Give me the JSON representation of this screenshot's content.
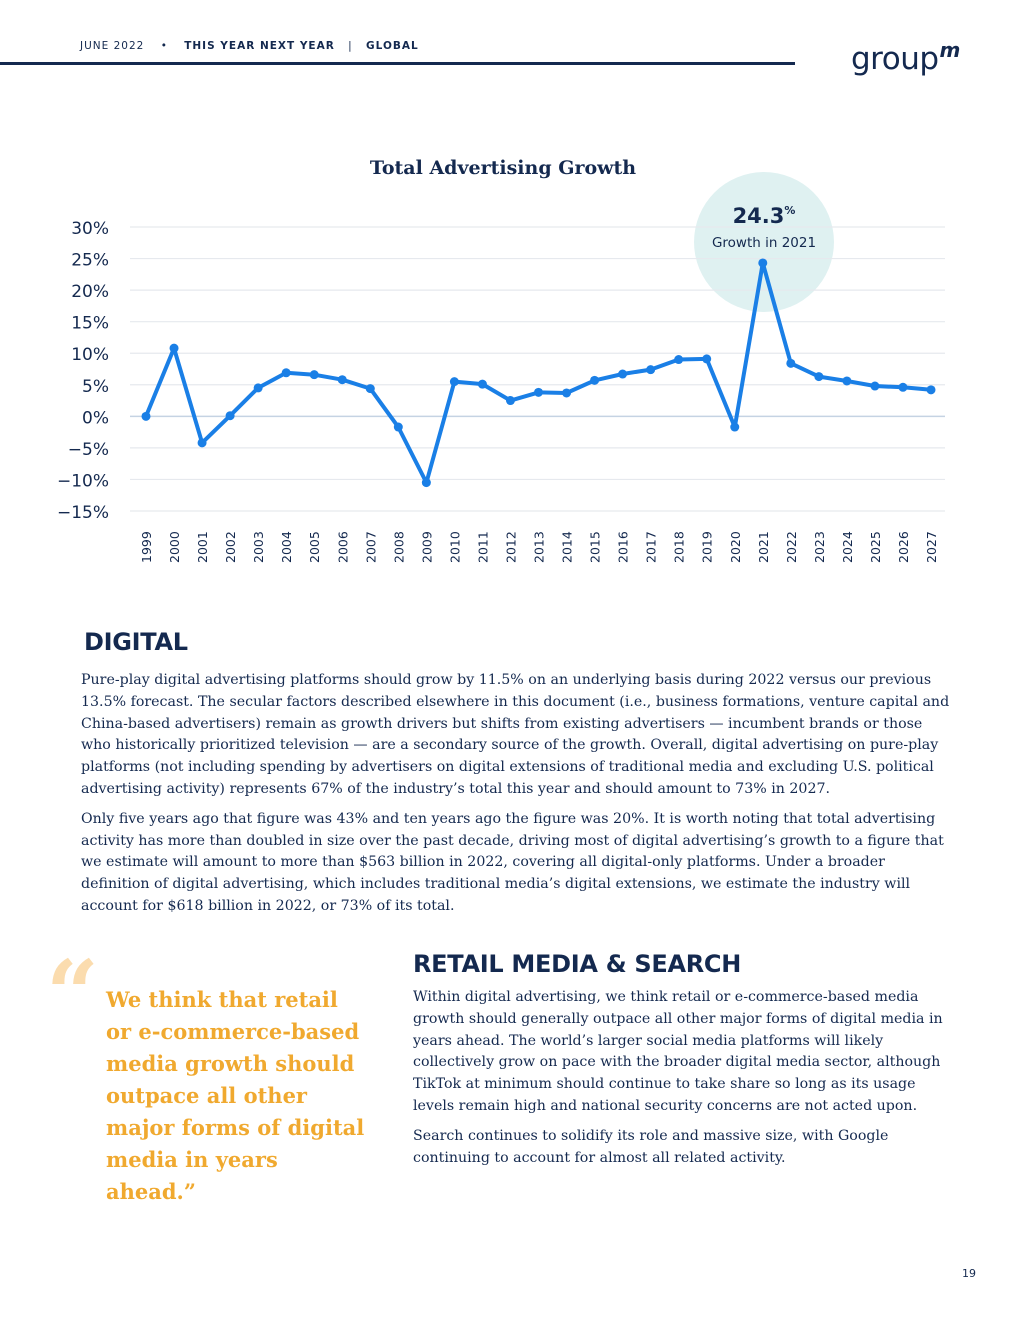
{
  "header": {
    "date": "JUNE 2022",
    "bullet": "•",
    "report": "THIS YEAR NEXT YEAR",
    "divider": "|",
    "region": "GLOBAL"
  },
  "logo": {
    "text": "group",
    "suffix": "m"
  },
  "chart_callout": {
    "value": "24.3",
    "unit": "%",
    "label": "Growth in 2021"
  },
  "chart_data": {
    "type": "line",
    "title": "Total Advertising Growth",
    "xlabel": "",
    "ylabel": "",
    "x": [
      "1999",
      "2000",
      "2001",
      "2002",
      "2003",
      "2004",
      "2005",
      "2006",
      "2007",
      "2008",
      "2009",
      "2010",
      "2011",
      "2012",
      "2013",
      "2014",
      "2015",
      "2016",
      "2017",
      "2018",
      "2019",
      "2020",
      "2021",
      "2022",
      "2023",
      "2024",
      "2025",
      "2026",
      "2027"
    ],
    "series": [
      {
        "values": [
          0.0,
          10.8,
          -4.2,
          0.1,
          4.5,
          6.9,
          6.6,
          5.8,
          4.4,
          -1.7,
          -10.5,
          5.5,
          5.1,
          2.5,
          3.8,
          3.7,
          5.7,
          6.7,
          7.4,
          9.0,
          9.1,
          -1.7,
          24.3,
          8.4,
          6.3,
          5.6,
          4.8,
          4.6,
          4.2
        ]
      }
    ],
    "ylim": [
      -15,
      30
    ],
    "yticks": [
      "30%",
      "25%",
      "20%",
      "15%",
      "10%",
      "5%",
      "0%",
      "−5%",
      "−10%",
      "−15%"
    ],
    "grid": true,
    "color": "#1a7fe6"
  },
  "digital": {
    "heading": "DIGITAL",
    "p1": "Pure-play digital advertising platforms should grow by 11.5% on an underlying basis during 2022 versus our previous 13.5% forecast. The secular factors described elsewhere in this document (i.e., business formations, venture capital and China-based advertisers) remain as growth drivers but shifts from existing advertisers — incumbent brands or those who historically prioritized television — are a secondary source of the growth. Overall, digital advertising on pure-play platforms (not including spending by advertisers on digital extensions of traditional media and excluding U.S. political advertising activity) represents 67% of the industry’s total this year and should amount to 73% in 2027.",
    "p2": "Only five years ago that figure was 43% and ten years ago the figure was 20%. It is worth noting that total advertising activity has more than doubled in size over the past decade, driving most of digital advertising’s growth to a figure that we estimate will amount to more than $563 billion in 2022, covering all digital-only platforms. Under a broader definition of digital advertising, which includes traditional media’s digital extensions, we estimate the industry will account for $618 billion in 2022, or 73% of its total."
  },
  "quote": {
    "mark": "“",
    "text": "We think that retail or e-commerce-based media growth should outpace all other major forms of digital media in years ahead.”"
  },
  "retail": {
    "heading": "RETAIL MEDIA & SEARCH",
    "p1": "Within digital advertising, we think retail or e-commerce-based media growth should generally outpace all other major forms of digital media in years ahead. The world’s larger social media platforms will likely collectively grow on pace with the broader digital media sector, although TikTok at minimum should continue to take share so long as its usage levels remain high and national security concerns are not acted upon.",
    "p2": "Search continues to solidify its role and massive size, with Google continuing to account for almost all related activity."
  },
  "page_number": "19",
  "colors": {
    "navy": "#14294f",
    "line": "#1a7fe6",
    "accent": "#f0a92f",
    "callout": "#dff1f1"
  }
}
